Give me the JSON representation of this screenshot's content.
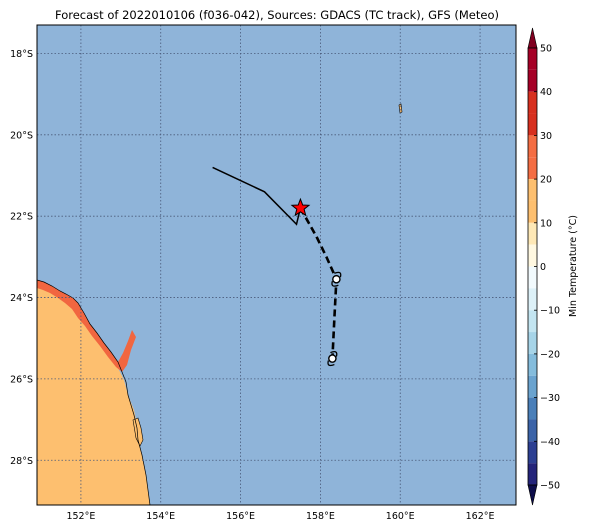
{
  "map": {
    "title": "Forecast of 2022010106 (f036-042), Sources: GDACS (TC track), GFS (Meteo)",
    "extent": {
      "lon_min": 150.9,
      "lon_max": 162.9,
      "lat_min": -29.1,
      "lat_max": -17.3
    },
    "colors": {
      "ocean": "#8fb4d9",
      "land_warm": "#fdbf6f",
      "land_hot": "#f16640",
      "gridline": "#4a5a7a",
      "track": "#000000",
      "storm_marker": "#ff0000"
    },
    "lon_ticks": [
      {
        "value": 152,
        "label": "152°E"
      },
      {
        "value": 154,
        "label": "154°E"
      },
      {
        "value": 156,
        "label": "156°E"
      },
      {
        "value": 158,
        "label": "158°E"
      },
      {
        "value": 160,
        "label": "160°E"
      },
      {
        "value": 162,
        "label": "162°E"
      }
    ],
    "lat_ticks": [
      {
        "value": -18,
        "label": "18°S"
      },
      {
        "value": -20,
        "label": "20°S"
      },
      {
        "value": -22,
        "label": "22°S"
      },
      {
        "value": -24,
        "label": "24°S"
      },
      {
        "value": -26,
        "label": "26°S"
      },
      {
        "value": -28,
        "label": "28°S"
      }
    ],
    "past_track": [
      [
        155.3,
        -20.8
      ],
      [
        156.6,
        -21.4
      ],
      [
        157.4,
        -22.2
      ],
      [
        157.5,
        -21.8
      ]
    ],
    "forecast_track": [
      [
        157.5,
        -21.8
      ],
      [
        157.9,
        -22.5
      ],
      [
        158.15,
        -23.0
      ],
      [
        158.4,
        -23.55
      ],
      [
        158.35,
        -24.5
      ],
      [
        158.3,
        -25.5
      ]
    ],
    "current_position": [
      157.5,
      -21.8
    ],
    "forecast_positions": [
      [
        158.4,
        -23.55
      ],
      [
        158.3,
        -25.5
      ]
    ]
  },
  "colorbar": {
    "label": "Min Temperature (°C)",
    "min": -50,
    "max": 50,
    "ticks": [
      {
        "value": 50,
        "label": "50"
      },
      {
        "value": 40,
        "label": "40"
      },
      {
        "value": 30,
        "label": "30"
      },
      {
        "value": 20,
        "label": "20"
      },
      {
        "value": 10,
        "label": "10"
      },
      {
        "value": 0,
        "label": "0"
      },
      {
        "value": -10,
        "label": "−10"
      },
      {
        "value": -20,
        "label": "−20"
      },
      {
        "value": -30,
        "label": "−30"
      },
      {
        "value": -40,
        "label": "−40"
      },
      {
        "value": -50,
        "label": "−50"
      }
    ],
    "bins": [
      {
        "from": 45,
        "to": 50,
        "color": "#a50026"
      },
      {
        "from": 40,
        "to": 45,
        "color": "#a50026"
      },
      {
        "from": 35,
        "to": 40,
        "color": "#d7301f"
      },
      {
        "from": 30,
        "to": 35,
        "color": "#d7301f"
      },
      {
        "from": 25,
        "to": 30,
        "color": "#f46d43"
      },
      {
        "from": 20,
        "to": 25,
        "color": "#f46d43"
      },
      {
        "from": 15,
        "to": 20,
        "color": "#fdbf6f"
      },
      {
        "from": 10,
        "to": 15,
        "color": "#fdbf6f"
      },
      {
        "from": 5,
        "to": 10,
        "color": "#fee8b6"
      },
      {
        "from": 0,
        "to": 5,
        "color": "#fff8e1"
      },
      {
        "from": -5,
        "to": 0,
        "color": "#f2fafd"
      },
      {
        "from": -10,
        "to": -5,
        "color": "#ddf1f8"
      },
      {
        "from": -15,
        "to": -10,
        "color": "#c3e5f1"
      },
      {
        "from": -20,
        "to": -15,
        "color": "#a6d4e8"
      },
      {
        "from": -25,
        "to": -20,
        "color": "#84bcdc"
      },
      {
        "from": -30,
        "to": -25,
        "color": "#6aa3cf"
      },
      {
        "from": -35,
        "to": -30,
        "color": "#4a7fb9"
      },
      {
        "from": -40,
        "to": -35,
        "color": "#3b63a8"
      },
      {
        "from": -45,
        "to": -40,
        "color": "#2c3f92"
      },
      {
        "from": -50,
        "to": -45,
        "color": "#24247a"
      }
    ],
    "extend_top_color": "#800020",
    "extend_bottom_color": "#0d0d4a"
  }
}
